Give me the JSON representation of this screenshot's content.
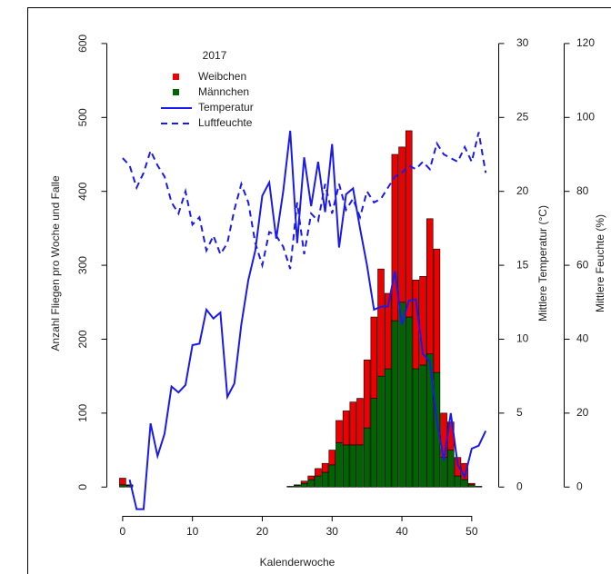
{
  "chart_data": {
    "type": "bar",
    "x": [
      0,
      1,
      2,
      3,
      4,
      5,
      6,
      7,
      8,
      9,
      10,
      11,
      12,
      13,
      14,
      15,
      16,
      17,
      18,
      19,
      20,
      21,
      22,
      23,
      24,
      25,
      26,
      27,
      28,
      29,
      30,
      31,
      32,
      33,
      34,
      35,
      36,
      37,
      38,
      39,
      40,
      41,
      42,
      43,
      44,
      45,
      46,
      47,
      48,
      49,
      50,
      51,
      52
    ],
    "legend_title": "2017",
    "xlabel": "Kalenderwoche",
    "ylabel": "Anzahl Fliegen pro Woche und Falle",
    "y2label": "Mittlere Temperatur (°C)",
    "y3label": "Mittlere Feuchte (%)",
    "xlim": [
      -2.2,
      53.8
    ],
    "xticks": [
      0,
      10,
      20,
      30,
      40,
      50
    ],
    "ylim": [
      -39,
      622
    ],
    "yticks": [
      0,
      100,
      200,
      300,
      400,
      500,
      600
    ],
    "y2lim": [
      -1.95,
      31.1
    ],
    "y2ticks": [
      0,
      5,
      10,
      15,
      20,
      25,
      30
    ],
    "y3lim": [
      -7.8,
      124.4
    ],
    "y3ticks": [
      0,
      20,
      40,
      60,
      80,
      100,
      120
    ],
    "series": [
      {
        "name": "Weibchen",
        "color": "#ee0000",
        "kind": "bar",
        "stack": 1,
        "values": [
          9,
          1,
          0,
          0,
          0,
          0,
          0,
          0,
          0,
          0,
          0,
          0,
          0,
          0,
          0,
          0,
          0,
          0,
          0,
          0,
          0,
          0,
          0,
          0,
          0,
          1,
          3,
          5,
          10,
          12,
          20,
          30,
          46,
          58,
          63,
          92,
          110,
          145,
          102,
          225,
          210,
          252,
          120,
          120,
          183,
          167,
          60,
          38,
          25,
          22,
          2,
          0,
          0
        ]
      },
      {
        "name": "Männchen",
        "color": "#006400",
        "kind": "bar",
        "stack": 0,
        "values": [
          3,
          2,
          0,
          0,
          0,
          0,
          0,
          0,
          0,
          0,
          0,
          0,
          0,
          0,
          0,
          0,
          0,
          0,
          0,
          0,
          0,
          0,
          0,
          0,
          1,
          2,
          5,
          10,
          15,
          20,
          30,
          60,
          57,
          57,
          57,
          80,
          120,
          150,
          160,
          225,
          250,
          230,
          160,
          165,
          180,
          155,
          40,
          50,
          15,
          10,
          3,
          1,
          0
        ]
      },
      {
        "name": "Temperatur",
        "color": "#1a1aee",
        "kind": "line",
        "axis": "y2",
        "dashed": false,
        "values": [
          null,
          0.5,
          -1.5,
          -1.5,
          4.3,
          2.1,
          3.6,
          6.8,
          6.4,
          6.9,
          9.6,
          9.7,
          12,
          11.4,
          11.8,
          6.1,
          7.0,
          11,
          14,
          16,
          19.7,
          20.6,
          16.8,
          20,
          24.1,
          16.5,
          22.3,
          19,
          22,
          18.6,
          23.2,
          16.2,
          19.8,
          20.2,
          17.5,
          15,
          12,
          12.2,
          12.2,
          14.6,
          11,
          12.6,
          12.7,
          9,
          8.5,
          4.5,
          1.8,
          5,
          1.5,
          0.7,
          2.6,
          2.8,
          3.8
        ]
      },
      {
        "name": "Luftfeuchte",
        "color": "#1a1aee",
        "kind": "line",
        "axis": "y3",
        "dashed": true,
        "values": [
          89,
          87,
          81,
          85,
          91,
          87,
          84,
          77,
          74,
          80,
          71,
          73,
          64,
          68,
          63,
          66,
          75,
          82,
          77,
          66,
          60,
          69,
          68,
          65,
          59,
          77,
          63,
          74,
          72,
          82,
          74,
          82,
          75,
          78,
          73,
          80,
          77,
          78,
          81,
          84,
          85,
          87,
          86,
          88,
          86,
          93,
          90,
          89,
          88,
          92,
          88,
          96,
          85
        ]
      }
    ]
  }
}
